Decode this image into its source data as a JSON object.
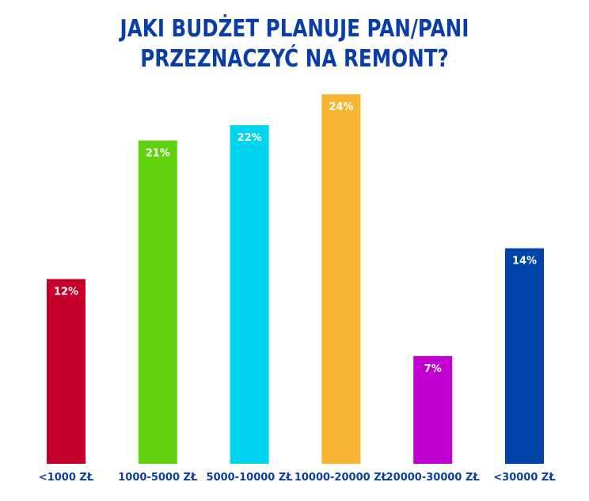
{
  "chart_data": {
    "type": "bar",
    "title_lines": [
      "JAKI BUDŻET PLANUJE PAN/PANI",
      "PRZEZNACZYĆ NA REMONT?"
    ],
    "categories": [
      "<1000 ZŁ",
      "1000-5000 ZŁ",
      "5000-10000 ZŁ",
      "10000-20000 ZŁ",
      "20000-30000 ZŁ",
      "<30000 ZŁ"
    ],
    "values": [
      12,
      21,
      22,
      24,
      7,
      14
    ],
    "value_labels": [
      "12%",
      "21%",
      "22%",
      "24%",
      "7%",
      "14%"
    ],
    "colors": [
      "#c4002a",
      "#5fd10e",
      "#00d4ee",
      "#f6b532",
      "#c000cf",
      "#0043a8"
    ],
    "unit": "%",
    "grid": false,
    "legend": "none",
    "title_color": "#0a3ea6",
    "label_color": "#0a3ea6"
  }
}
